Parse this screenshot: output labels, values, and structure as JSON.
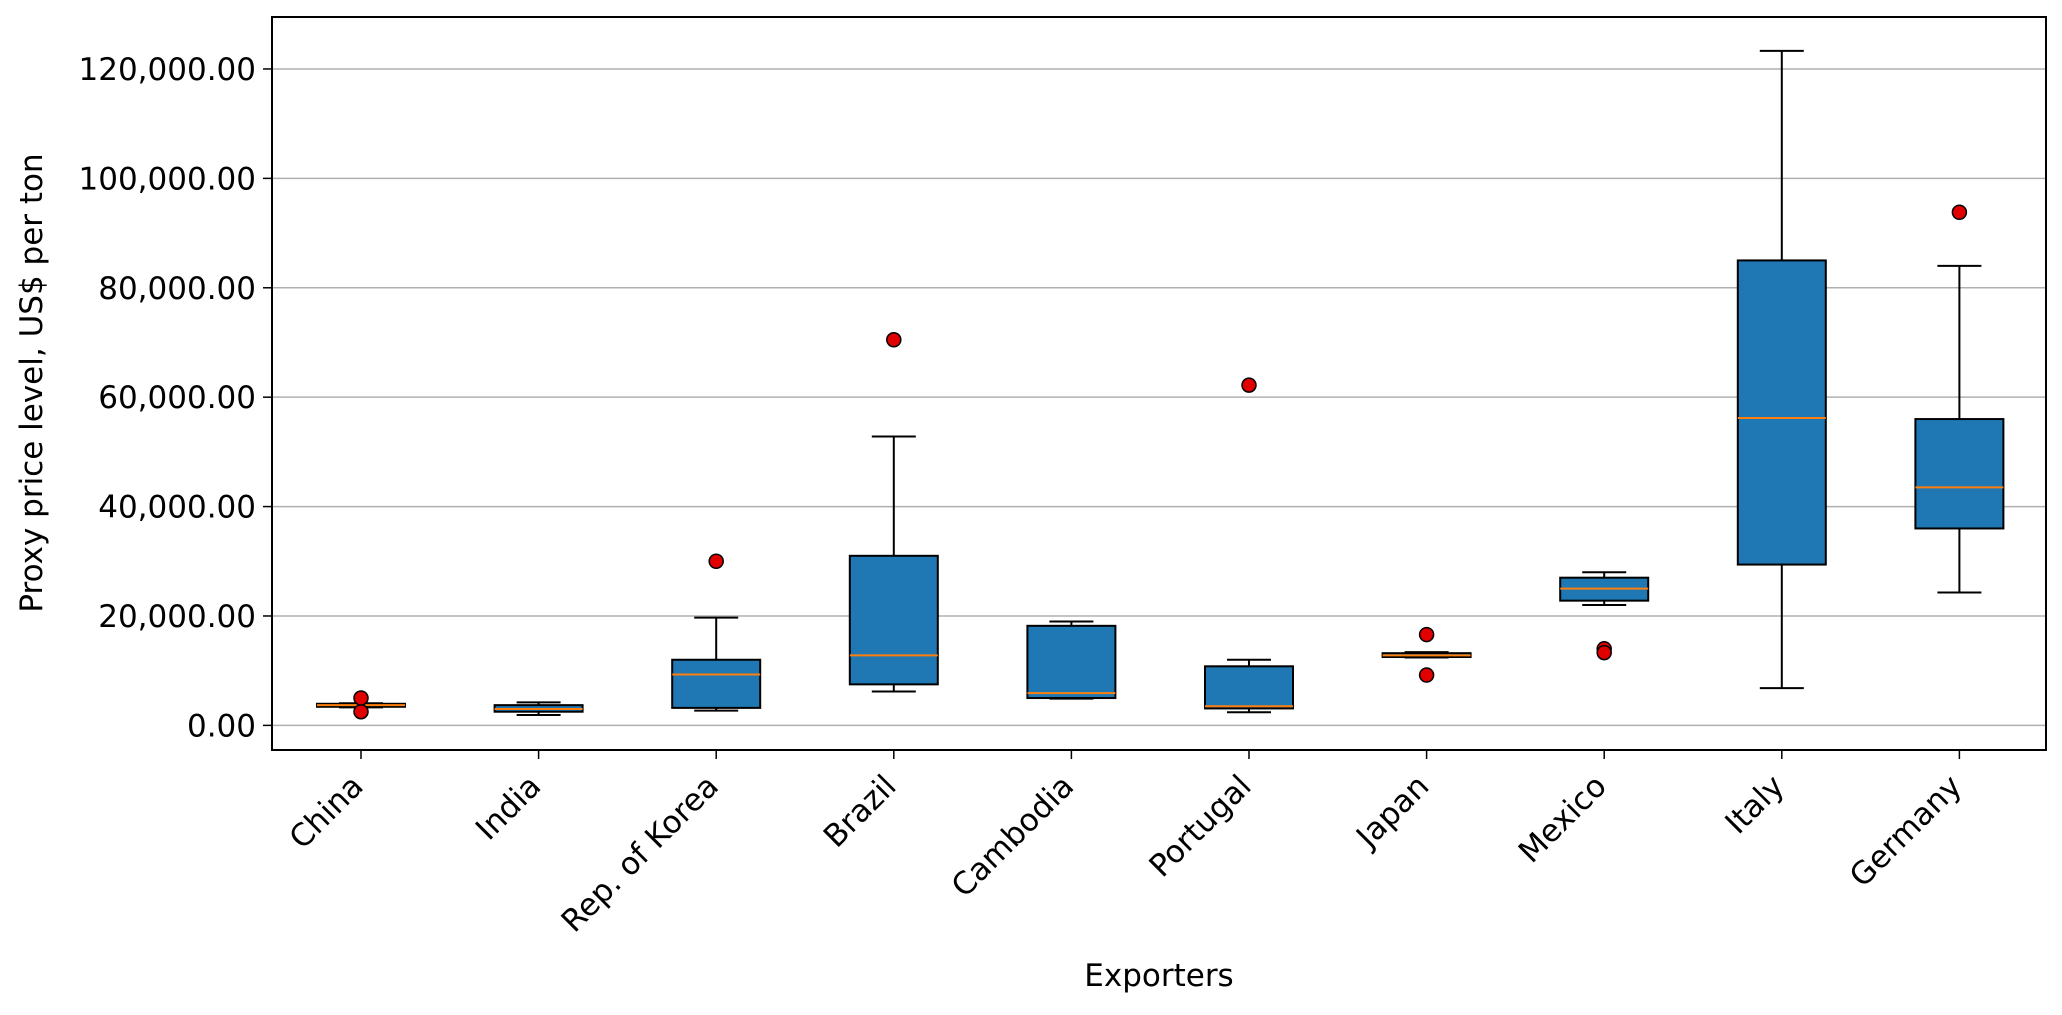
{
  "chart_data": {
    "type": "box",
    "title": "",
    "xlabel": "Exporters",
    "ylabel": "Proxy price level, US$ per ton",
    "ylim": [
      -4500,
      129500
    ],
    "yticks": [
      0,
      20000,
      40000,
      60000,
      80000,
      100000,
      120000
    ],
    "ytick_labels": [
      "0.00",
      "20,000.00",
      "40,000.00",
      "60,000.00",
      "80,000.00",
      "100,000.00",
      "120,000.00"
    ],
    "grid": "horizontal",
    "categories": [
      "China",
      "India",
      "Rep. of Korea",
      "Brazil",
      "Cambodia",
      "Portugal",
      "Japan",
      "Mexico",
      "Italy",
      "Germany"
    ],
    "boxes": [
      {
        "category": "China",
        "whisker_low": 3300,
        "q1": 3400,
        "median": 3700,
        "q3": 3950,
        "whisker_high": 4050,
        "outliers": [
          2500,
          5000
        ]
      },
      {
        "category": "India",
        "whisker_low": 1900,
        "q1": 2500,
        "median": 3000,
        "q3": 3700,
        "whisker_high": 4200,
        "outliers": []
      },
      {
        "category": "Rep. of Korea",
        "whisker_low": 2700,
        "q1": 3200,
        "median": 9300,
        "q3": 12000,
        "whisker_high": 19700,
        "outliers": [
          30000
        ]
      },
      {
        "category": "Brazil",
        "whisker_low": 6200,
        "q1": 7500,
        "median": 12800,
        "q3": 31000,
        "whisker_high": 52800,
        "outliers": [
          70500
        ]
      },
      {
        "category": "Cambodia",
        "whisker_low": 4900,
        "q1": 5000,
        "median": 5900,
        "q3": 18200,
        "whisker_high": 19000,
        "outliers": []
      },
      {
        "category": "Portugal",
        "whisker_low": 2400,
        "q1": 3100,
        "median": 3500,
        "q3": 10800,
        "whisker_high": 12000,
        "outliers": [
          62200
        ]
      },
      {
        "category": "Japan",
        "whisker_low": 12400,
        "q1": 12500,
        "median": 12800,
        "q3": 13200,
        "whisker_high": 13400,
        "outliers": [
          16600,
          9200
        ]
      },
      {
        "category": "Mexico",
        "whisker_low": 22000,
        "q1": 22800,
        "median": 25000,
        "q3": 27000,
        "whisker_high": 28000,
        "outliers": [
          14000,
          13300
        ]
      },
      {
        "category": "Italy",
        "whisker_low": 6800,
        "q1": 29400,
        "median": 56200,
        "q3": 85000,
        "whisker_high": 123300,
        "outliers": []
      },
      {
        "category": "Germany",
        "whisker_low": 24300,
        "q1": 36000,
        "median": 43500,
        "q3": 56000,
        "whisker_high": 84000,
        "outliers": [
          93800
        ]
      }
    ],
    "colors": {
      "box_fill": "#1f77b4",
      "box_edge": "#000000",
      "median": "#ff7f0e",
      "outlier_fill": "#e00000",
      "outlier_edge": "#000000",
      "grid": "#b0b0b0"
    }
  }
}
